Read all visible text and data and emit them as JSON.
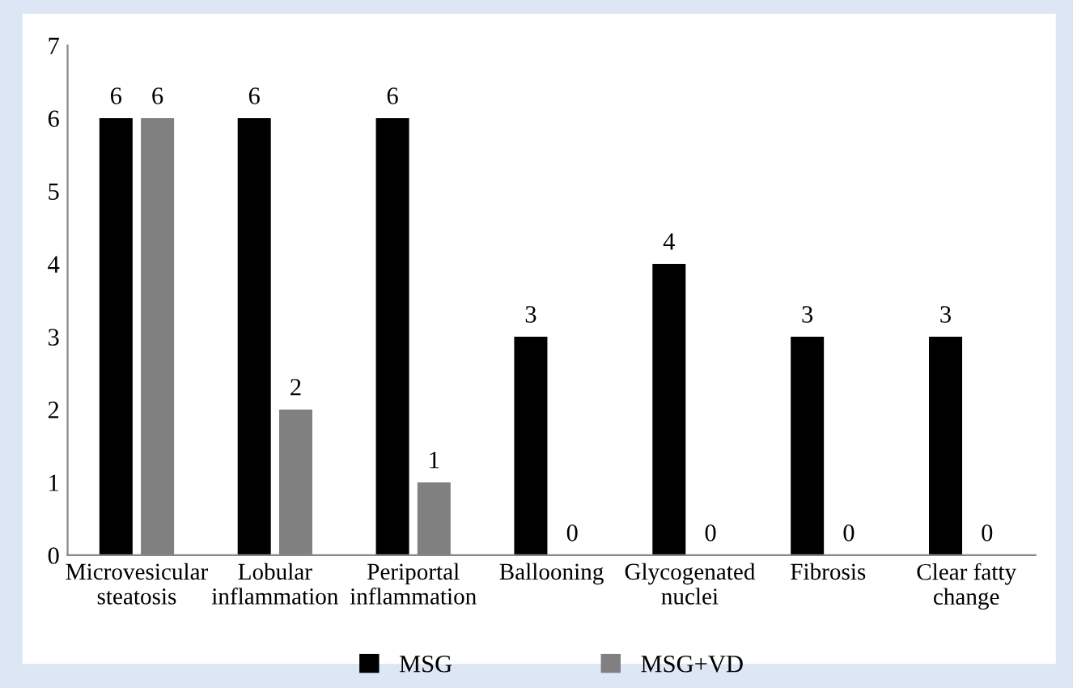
{
  "chart_data": {
    "type": "bar",
    "categories": [
      "Microvesicular\nsteatosis",
      "Lobular\ninflammation",
      "Periportal\ninflammation",
      "Ballooning",
      "Glycogenated\nnuclei",
      "Fibrosis",
      "Clear fatty\nchange"
    ],
    "series": [
      {
        "name": "MSG",
        "color": "#000000",
        "values": [
          6,
          6,
          6,
          3,
          4,
          3,
          3
        ]
      },
      {
        "name": "MSG+VD",
        "color": "#808080",
        "values": [
          6,
          2,
          1,
          0,
          0,
          0,
          0
        ]
      }
    ],
    "ylim": [
      0,
      7
    ],
    "yticks": [
      0,
      1,
      2,
      3,
      4,
      5,
      6,
      7
    ],
    "grid": false,
    "legend": "bottom",
    "data_labels": true
  }
}
